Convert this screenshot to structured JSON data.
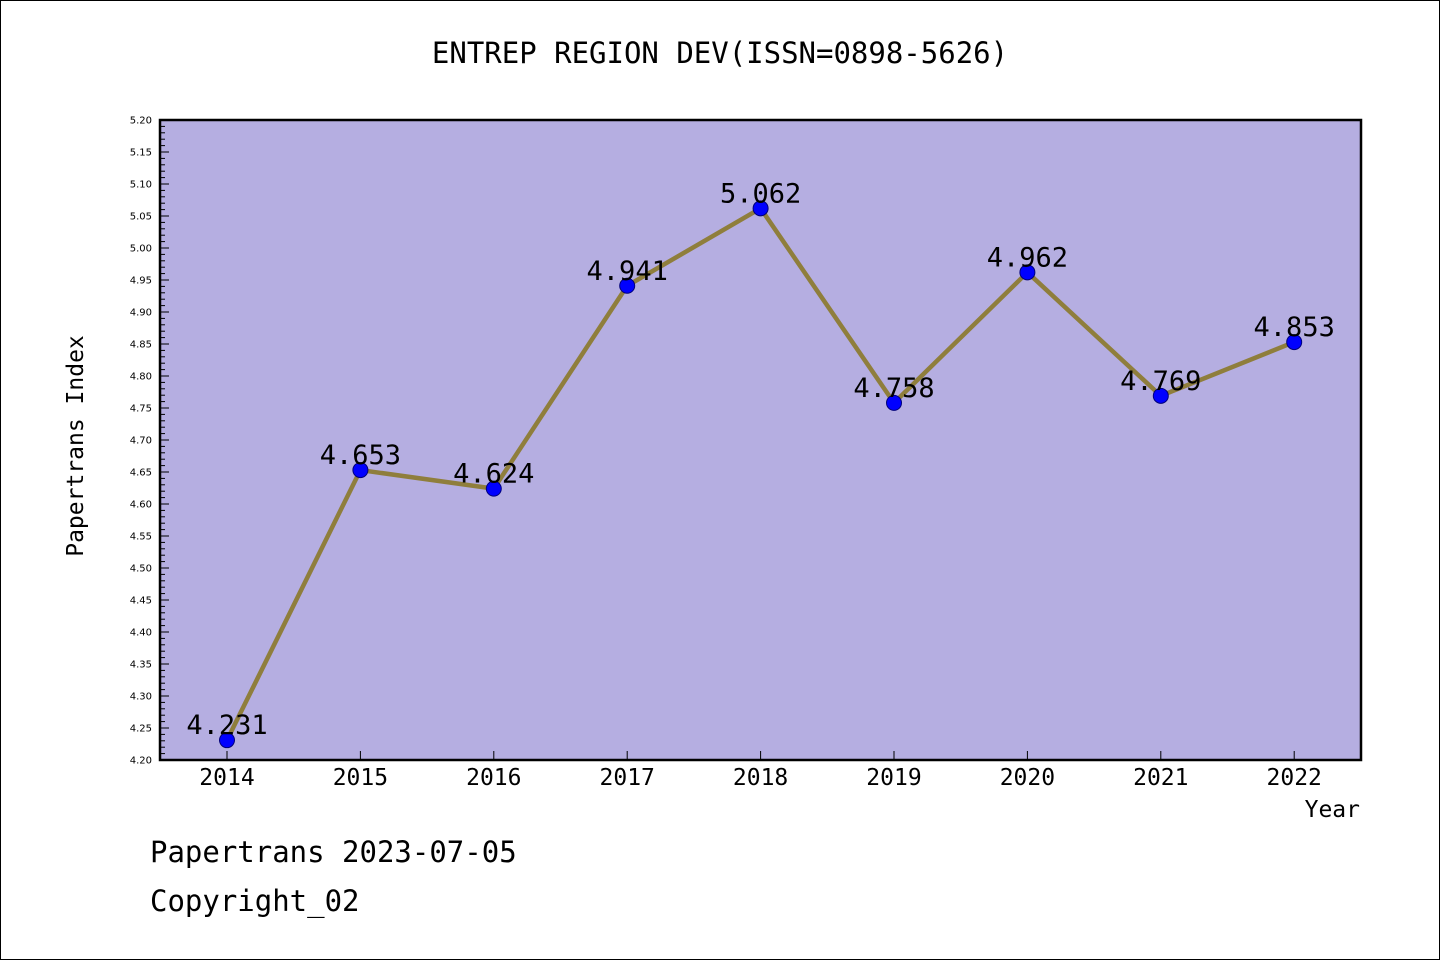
{
  "chart_data": {
    "type": "line",
    "title": "ENTREP REGION DEV(ISSN=0898-5626)",
    "xlabel": "Year",
    "ylabel": "Papertrans Index",
    "categories": [
      "2014",
      "2015",
      "2016",
      "2017",
      "2018",
      "2019",
      "2020",
      "2021",
      "2022"
    ],
    "series": [
      {
        "values": [
          4.231,
          4.653,
          4.624,
          4.941,
          5.062,
          4.758,
          4.962,
          4.769,
          4.853
        ],
        "labels": [
          "4.231",
          "4.653",
          "4.624",
          "4.941",
          "5.062",
          "4.758",
          "4.962",
          "4.769",
          "4.853"
        ]
      }
    ],
    "ylim": [
      4.2,
      5.2
    ],
    "yticks": [
      "4.20",
      "4.25",
      "4.30",
      "4.35",
      "4.40",
      "4.45",
      "4.50",
      "4.55",
      "4.60",
      "4.65",
      "4.70",
      "4.75",
      "4.80",
      "4.85",
      "4.90",
      "4.95",
      "5.00",
      "5.05",
      "5.10",
      "5.15",
      "5.20"
    ],
    "grid": false,
    "colors": {
      "plot_background": "#b5aee1",
      "line": "#8f7e3c",
      "marker": "#0000ff"
    }
  },
  "footer": {
    "line1": "Papertrans 2023-07-05",
    "line2": "Copyright_02"
  }
}
